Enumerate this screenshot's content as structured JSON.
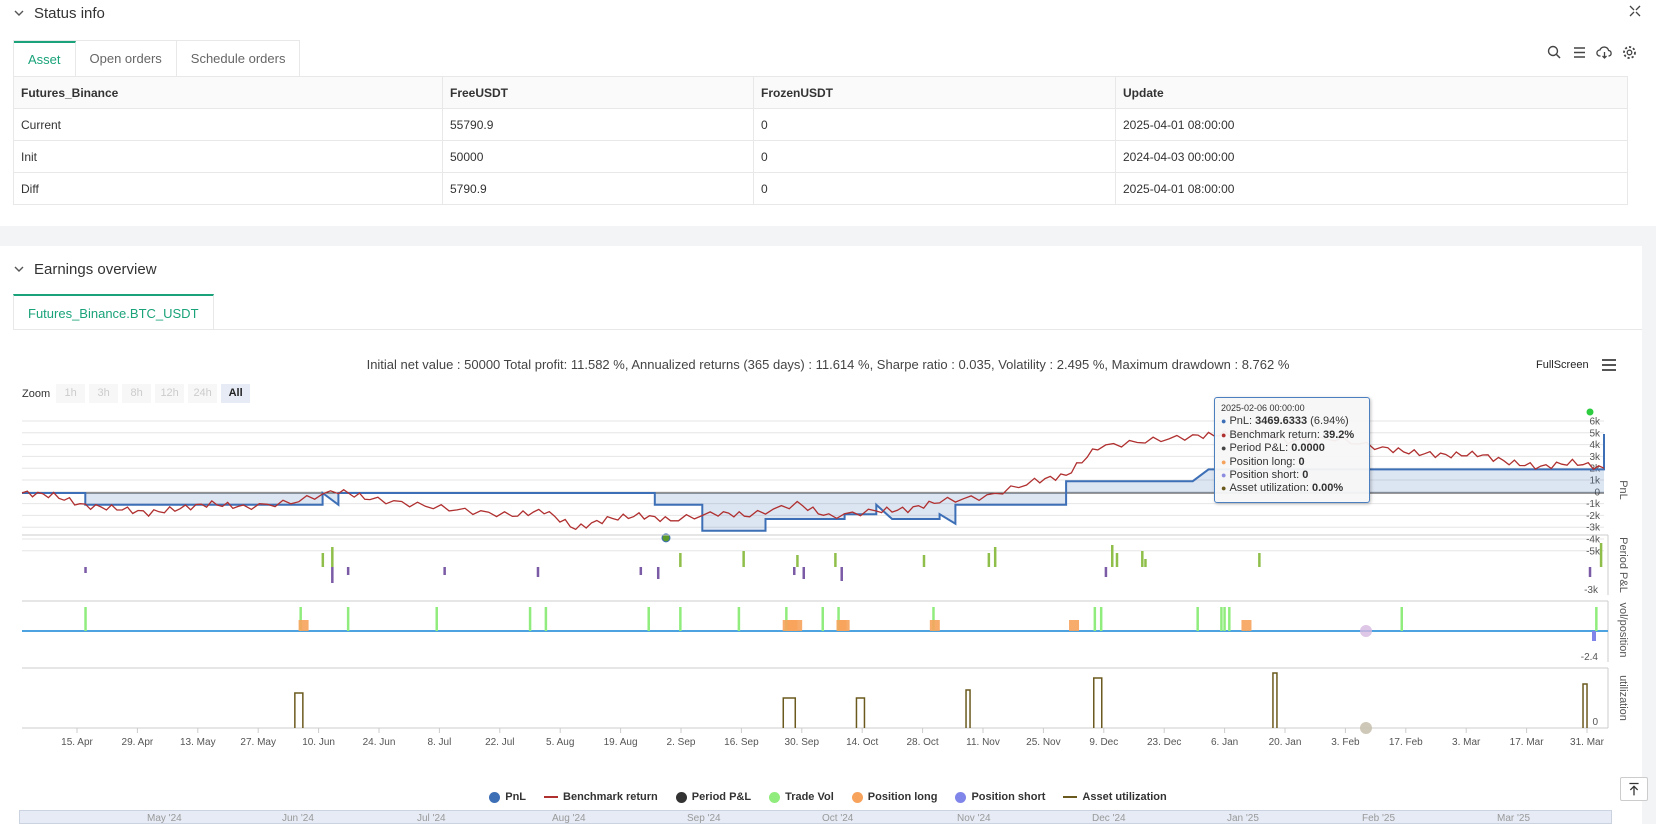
{
  "status": {
    "title": "Status info",
    "tabs": [
      "Asset",
      "Open orders",
      "Schedule orders"
    ],
    "table": {
      "headers": [
        "Futures_Binance",
        "FreeUSDT",
        "FrozenUSDT",
        "Update"
      ],
      "rows": [
        [
          "Current",
          "55790.9",
          "0",
          "2025-04-01 08:00:00"
        ],
        [
          "Init",
          "50000",
          "0",
          "2024-04-03 00:00:00"
        ],
        [
          "Diff",
          "5790.9",
          "0",
          "2025-04-01 08:00:00"
        ]
      ]
    }
  },
  "earnings": {
    "title": "Earnings overview",
    "tab": "Futures_Binance.BTC_USDT",
    "stats": "Initial net value : 50000 Total profit: 11.582 %, Annualized returns (365 days) : 11.614 %, Sharpe ratio : 0.035, Volatility : 2.495 %, Maximum drawdown : 8.762 %",
    "fullscreen": "FullScreen",
    "zoom_label": "Zoom",
    "zoom_buttons": [
      "1h",
      "3h",
      "8h",
      "12h",
      "24h",
      "All"
    ]
  },
  "tooltip": {
    "date": "2025-02-06 00:00:00",
    "rows": [
      {
        "label": "PnL: ",
        "value": "3469.6333",
        "suffix": " (6.94%)",
        "color": "#3d6fb6"
      },
      {
        "label": "Benchmark return: ",
        "value": "39.2%",
        "suffix": "",
        "color": "#b03030"
      },
      {
        "label": "Period P&L: ",
        "value": "0.0000",
        "suffix": "",
        "color": "#444444"
      },
      {
        "label": "Position long: ",
        "value": "0",
        "suffix": "",
        "color": "#f5a35c"
      },
      {
        "label": "Position short: ",
        "value": "0",
        "suffix": "",
        "color": "#8c8ce0"
      },
      {
        "label": "Asset utilization: ",
        "value": "0.00%",
        "suffix": "",
        "color": "#6b5a1e"
      }
    ]
  },
  "legend": [
    {
      "label": "PnL",
      "kind": "dot",
      "color": "#3d6fb6"
    },
    {
      "label": "Benchmark return",
      "kind": "line",
      "color": "#b03030"
    },
    {
      "label": "Period P&L",
      "kind": "dot",
      "color": "#333333"
    },
    {
      "label": "Trade Vol",
      "kind": "dot",
      "color": "#90ed7d"
    },
    {
      "label": "Position long",
      "kind": "dot",
      "color": "#f7a35c"
    },
    {
      "label": "Position short",
      "kind": "dot",
      "color": "#8085e9"
    },
    {
      "label": "Asset utilization",
      "kind": "line",
      "color": "#6b5a1e"
    }
  ],
  "navigator_labels": [
    "May '24",
    "Jun '24",
    "Jul '24",
    "Aug '24",
    "Sep '24",
    "Oct '24",
    "Nov '24",
    "Dec '24",
    "Jan '25",
    "Feb '25",
    "Mar '25"
  ],
  "chart_data": {
    "type": "line",
    "x_labels": [
      "15. Apr",
      "29. Apr",
      "13. May",
      "27. May",
      "10. Jun",
      "24. Jun",
      "8. Jul",
      "22. Jul",
      "5. Aug",
      "19. Aug",
      "2. Sep",
      "16. Sep",
      "30. Sep",
      "14. Oct",
      "28. Oct",
      "11. Nov",
      "25. Nov",
      "9. Dec",
      "23. Dec",
      "6. Jan",
      "20. Jan",
      "3. Feb",
      "17. Feb",
      "3. Mar",
      "17. Mar",
      "31. Mar"
    ],
    "panels": [
      {
        "name": "PnL",
        "yticks": [
          "6k",
          "5k",
          "4k",
          "3k",
          "2k",
          "1k",
          "0",
          "-1k",
          "-2k",
          "-3k",
          "-4k",
          "-5k"
        ]
      },
      {
        "name": "Period P&L",
        "yticks": [
          "-3k"
        ]
      },
      {
        "name": "vol/position",
        "yticks": [
          "-2.4"
        ]
      },
      {
        "name": "utilization",
        "yticks": [
          "0"
        ]
      }
    ],
    "pnl_series": {
      "name": "PnL",
      "points": [
        [
          0,
          0
        ],
        [
          4,
          0
        ],
        [
          4,
          -1000
        ],
        [
          19,
          -1000
        ],
        [
          19,
          0
        ],
        [
          20,
          -1000
        ],
        [
          20,
          0
        ],
        [
          40,
          0
        ],
        [
          40,
          -1000
        ],
        [
          43,
          -1000
        ],
        [
          43,
          -3200
        ],
        [
          47,
          -3200
        ],
        [
          47,
          -2200
        ],
        [
          52,
          -2200
        ],
        [
          52,
          -1800
        ],
        [
          54,
          -1800
        ],
        [
          54,
          -1000
        ],
        [
          55,
          -2200
        ],
        [
          58,
          -2200
        ],
        [
          58,
          -1800
        ],
        [
          59,
          -2600
        ],
        [
          59,
          -1000
        ],
        [
          66,
          -1000
        ],
        [
          66,
          1000
        ],
        [
          74,
          1000
        ],
        [
          75,
          2000
        ],
        [
          100,
          2000
        ],
        [
          100,
          3000
        ],
        [
          100,
          5000
        ]
      ]
    },
    "benchmark_series": {
      "name": "Benchmark return",
      "points": [
        [
          0,
          0
        ],
        [
          2,
          -200
        ],
        [
          4,
          -1100
        ],
        [
          6,
          -1300
        ],
        [
          8,
          -1700
        ],
        [
          10,
          -1300
        ],
        [
          12,
          -900
        ],
        [
          14,
          -1200
        ],
        [
          17,
          -800
        ],
        [
          20,
          200
        ],
        [
          22,
          -500
        ],
        [
          25,
          -1000
        ],
        [
          28,
          -1500
        ],
        [
          31,
          -1900
        ],
        [
          33,
          -1500
        ],
        [
          35,
          -3000
        ],
        [
          37,
          -2200
        ],
        [
          39,
          -1900
        ],
        [
          41,
          -2300
        ],
        [
          44,
          -1700
        ],
        [
          46,
          -1900
        ],
        [
          49,
          -900
        ],
        [
          51,
          -2000
        ],
        [
          54,
          -1500
        ],
        [
          56,
          -1400
        ],
        [
          58,
          -700
        ],
        [
          61,
          -300
        ],
        [
          64,
          1000
        ],
        [
          66,
          1500
        ],
        [
          68,
          3900
        ],
        [
          71,
          4400
        ],
        [
          74,
          4800
        ],
        [
          76,
          5000
        ],
        [
          78,
          5200
        ],
        [
          80,
          4400
        ],
        [
          83,
          4600
        ],
        [
          86,
          3800
        ],
        [
          88,
          3400
        ],
        [
          90,
          3200
        ],
        [
          92,
          3300
        ],
        [
          94,
          2600
        ],
        [
          96,
          2200
        ],
        [
          98,
          2600
        ],
        [
          100,
          2100
        ]
      ]
    },
    "asset_utilization_spikes_x": [
      17.5,
      48.5,
      53,
      59.8,
      68,
      79.2,
      98.8
    ]
  }
}
